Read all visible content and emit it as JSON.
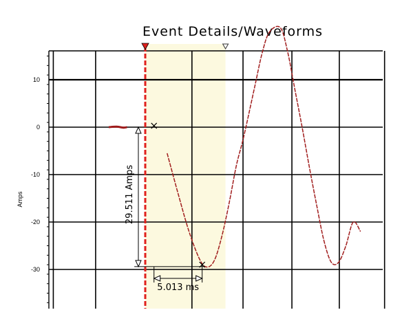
{
  "chart_data": {
    "type": "line",
    "title": "Event Details/Waveforms",
    "xlabel": "",
    "ylabel": "Amps",
    "y_range": [
      -37.5,
      16
    ],
    "y_ticks": [
      10,
      0,
      -10,
      -20,
      -30
    ],
    "x_range_ms": [
      -10,
      25
    ],
    "grid": true,
    "series_color": "#a01c1c",
    "cursor_marker_color": "#e0201c",
    "highlight_color": "#fcf9df",
    "samples_ms": [
      -5,
      -3.9,
      -3,
      -2.5,
      1.5,
      3,
      4.5,
      6,
      7.5,
      8.5,
      9.5,
      10.5,
      11.5,
      12.5,
      13.5,
      15,
      16,
      17,
      18.5,
      19.5,
      20.5,
      21.5,
      22.5,
      23.5,
      24.5,
      25.5,
      26.5,
      27.5,
      28.5,
      29.5
    ],
    "samples_amps": [
      0,
      0.1,
      -0.1,
      0,
      0,
      -5.5,
      -14,
      -22,
      -28,
      -29.5,
      -28,
      -23,
      -16,
      -8,
      -2,
      8.5,
      15.5,
      20,
      21,
      16,
      8,
      0,
      -8.5,
      -16.5,
      -24,
      -28.5,
      -28.5,
      -25,
      -20,
      -22
    ],
    "annotations": {
      "amplitude_label": "29.511 Amps",
      "time_label": "5.013 ms"
    }
  }
}
